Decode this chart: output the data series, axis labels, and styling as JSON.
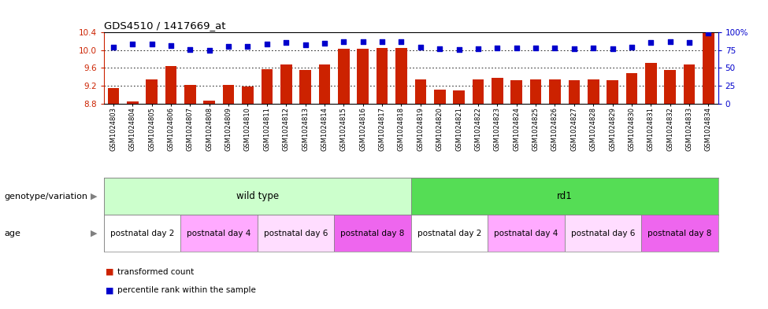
{
  "title": "GDS4510 / 1417669_at",
  "samples": [
    "GSM1024803",
    "GSM1024804",
    "GSM1024805",
    "GSM1024806",
    "GSM1024807",
    "GSM1024808",
    "GSM1024809",
    "GSM1024810",
    "GSM1024811",
    "GSM1024812",
    "GSM1024813",
    "GSM1024814",
    "GSM1024815",
    "GSM1024816",
    "GSM1024817",
    "GSM1024818",
    "GSM1024819",
    "GSM1024820",
    "GSM1024821",
    "GSM1024822",
    "GSM1024823",
    "GSM1024824",
    "GSM1024825",
    "GSM1024826",
    "GSM1024827",
    "GSM1024828",
    "GSM1024829",
    "GSM1024830",
    "GSM1024831",
    "GSM1024832",
    "GSM1024833",
    "GSM1024834"
  ],
  "bar_values": [
    9.15,
    8.85,
    9.35,
    9.65,
    9.22,
    8.87,
    9.22,
    9.18,
    9.58,
    9.68,
    9.55,
    9.68,
    10.04,
    10.03,
    10.05,
    10.05,
    9.35,
    9.12,
    9.1,
    9.35,
    9.37,
    9.32,
    9.35,
    9.35,
    9.32,
    9.35,
    9.32,
    9.48,
    9.72,
    9.55,
    9.68,
    10.38
  ],
  "percentile_values": [
    79,
    84,
    84,
    82,
    76,
    75,
    80,
    80,
    84,
    86,
    83,
    85,
    87,
    87,
    87,
    87,
    79,
    77,
    76,
    77,
    78,
    78,
    78,
    78,
    77,
    78,
    77,
    79,
    86,
    87,
    86,
    99
  ],
  "ylim": [
    8.8,
    10.4
  ],
  "yticks": [
    8.8,
    9.2,
    9.6,
    10.0,
    10.4
  ],
  "right_ylim": [
    0,
    100
  ],
  "right_yticks": [
    0,
    25,
    50,
    75,
    100
  ],
  "bar_color": "#CC2200",
  "dot_color": "#0000CC",
  "background_color": "#ffffff",
  "genotype_groups": [
    {
      "label": "wild type",
      "start": 0,
      "end": 16,
      "color": "#ccffcc"
    },
    {
      "label": "rd1",
      "start": 16,
      "end": 32,
      "color": "#55dd55"
    }
  ],
  "age_groups": [
    {
      "label": "postnatal day 2",
      "start": 0,
      "end": 4,
      "color": "#ffffff"
    },
    {
      "label": "postnatal day 4",
      "start": 4,
      "end": 8,
      "color": "#ffaaff"
    },
    {
      "label": "postnatal day 6",
      "start": 8,
      "end": 12,
      "color": "#ffddff"
    },
    {
      "label": "postnatal day 8",
      "start": 12,
      "end": 16,
      "color": "#ee66ee"
    },
    {
      "label": "postnatal day 2",
      "start": 16,
      "end": 20,
      "color": "#ffffff"
    },
    {
      "label": "postnatal day 4",
      "start": 20,
      "end": 24,
      "color": "#ffaaff"
    },
    {
      "label": "postnatal day 6",
      "start": 24,
      "end": 28,
      "color": "#ffddff"
    },
    {
      "label": "postnatal day 8",
      "start": 28,
      "end": 32,
      "color": "#ee66ee"
    }
  ],
  "legend_bar_label": "transformed count",
  "legend_dot_label": "percentile rank within the sample",
  "geno_label": "genotype/variation",
  "age_label": "age"
}
